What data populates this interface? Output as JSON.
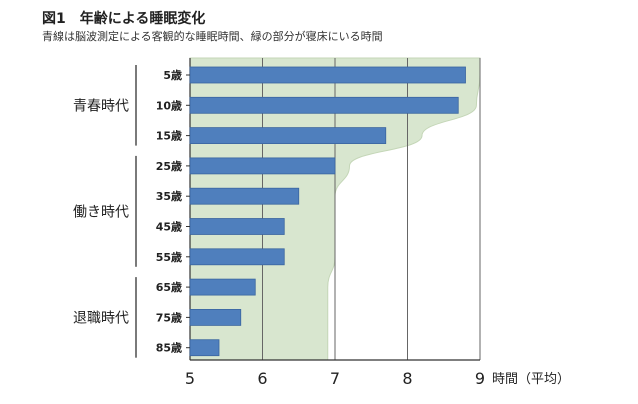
{
  "chart_data": {
    "type": "bar",
    "title": "図1　年齢による睡眠変化",
    "subtitle": "青線は脳波測定による客観的な睡眠時間、緑の部分が寝床にいる時間",
    "xlabel": "時間（平均）",
    "ylabel": "",
    "xlim": [
      5,
      9
    ],
    "xticks": [
      "5",
      "6",
      "7",
      "8",
      "9"
    ],
    "grid": "vertical",
    "categories": [
      "5歳",
      "10歳",
      "15歳",
      "25歳",
      "35歳",
      "45歳",
      "55歳",
      "65歳",
      "75歳",
      "85歳"
    ],
    "series": [
      {
        "values": [
          8.8,
          8.7,
          7.7,
          7.0,
          6.5,
          6.3,
          6.3,
          5.9,
          5.7,
          5.4
        ]
      }
    ],
    "bed_time_area": [
      9.0,
      8.95,
      8.2,
      7.2,
      7.0,
      7.0,
      7.0,
      6.9,
      6.9,
      6.9
    ],
    "groups": [
      {
        "label": "青春時代",
        "categories": [
          "5歳",
          "10歳",
          "15歳"
        ]
      },
      {
        "label": "働き時代",
        "categories": [
          "25歳",
          "35歳",
          "45歳",
          "55歳"
        ]
      },
      {
        "label": "退職時代",
        "categories": [
          "65歳",
          "75歳",
          "85歳"
        ]
      }
    ],
    "colors": {
      "bar": "#4f7fbd",
      "bar_stroke": "#3a659f",
      "area": "#d8e6cf",
      "area_stroke": "#c4d6b7",
      "axis": "#333333",
      "grid": "#666666"
    }
  }
}
